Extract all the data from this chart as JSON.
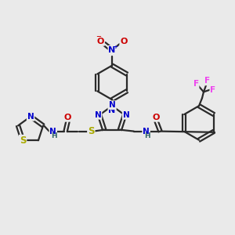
{
  "bg_color": "#eaeaea",
  "bond_color": "#2a2a2a",
  "bond_width": 1.6,
  "atom_colors": {
    "N": "#0000cc",
    "O": "#cc0000",
    "S": "#aaaa00",
    "F": "#ee44ee",
    "NH": "#336666",
    "H": "#336666"
  },
  "figsize": [
    3.0,
    3.0
  ],
  "dpi": 100
}
